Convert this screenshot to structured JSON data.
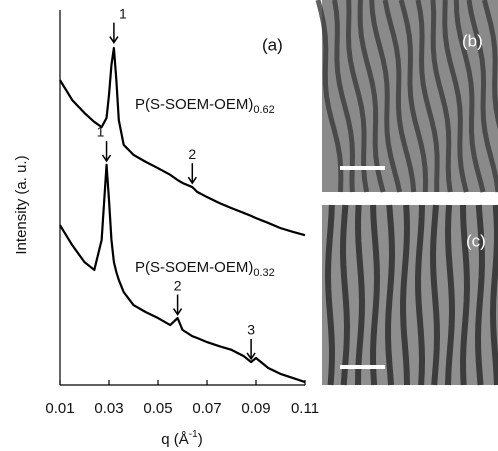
{
  "chart_data": {
    "type": "line",
    "xlabel": "q (Å",
    "xlabel_sup": "-1",
    "xlabel_end": ")",
    "ylabel": "Intensity (a. u.)",
    "panel_label": "(a)",
    "x": [
      0.01,
      0.015,
      0.02,
      0.024,
      0.027,
      0.029,
      0.03,
      0.031,
      0.032,
      0.033,
      0.034,
      0.036,
      0.04,
      0.045,
      0.05,
      0.055,
      0.058,
      0.06,
      0.064,
      0.066,
      0.07,
      0.075,
      0.08,
      0.085,
      0.088,
      0.09,
      0.095,
      0.1,
      0.105,
      0.11
    ],
    "series": [
      {
        "name": "P(S-SOEM-OEM)",
        "subscript": "0.62",
        "color": "#000000",
        "values": [
          82.4,
          77.0,
          73.5,
          71.1,
          69.7,
          72.2,
          78.4,
          86.5,
          91.1,
          82.4,
          71.6,
          64.9,
          62.2,
          60.3,
          58.6,
          56.8,
          55.4,
          54.6,
          53.5,
          52.2,
          50.8,
          49.2,
          47.8,
          46.5,
          45.7,
          45.1,
          43.8,
          42.4,
          41.4,
          40.5
        ]
      },
      {
        "name": "P(S-SOEM-OEM)",
        "subscript": "0.32",
        "color": "#000000",
        "values": [
          43.2,
          37.8,
          33.2,
          31.1,
          39.2,
          59.5,
          50.0,
          39.2,
          33.2,
          30.5,
          28.4,
          25.1,
          21.6,
          19.7,
          18.1,
          16.2,
          18.1,
          14.9,
          13.2,
          12.7,
          11.6,
          10.5,
          9.5,
          7.8,
          6.2,
          7.3,
          4.6,
          3.0,
          1.9,
          0.8
        ]
      }
    ],
    "annotations": [
      {
        "text": "1",
        "x": 0.032,
        "y": 92
      },
      {
        "text": "2",
        "x": 0.064,
        "y": 54
      },
      {
        "text": "1",
        "x": 0.029,
        "y": 60
      },
      {
        "text": "2",
        "x": 0.058,
        "y": 18.5
      },
      {
        "text": "3",
        "x": 0.088,
        "y": 6.5
      }
    ],
    "xlim": [
      0.01,
      0.11
    ],
    "xticks": [
      0.01,
      0.03,
      0.05,
      0.07,
      0.09,
      0.11
    ],
    "ylim": [
      0,
      100
    ],
    "log_y": false
  },
  "images": [
    {
      "label": "(b)"
    },
    {
      "label": "(c)"
    }
  ]
}
